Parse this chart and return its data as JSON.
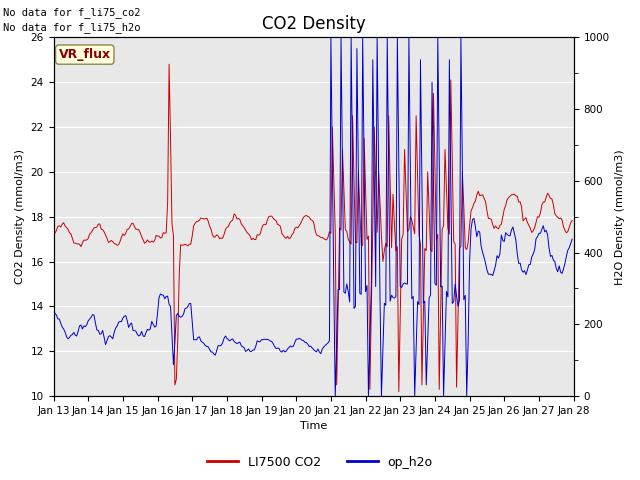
{
  "title": "CO2 Density",
  "xlabel": "Time",
  "ylabel_left": "CO2 Density (mmol/m3)",
  "ylabel_right": "H2O Density (mmol/m3)",
  "annotation_line1": "No data for f_li75_co2",
  "annotation_line2": "No data for f_li75_h2o",
  "vr_flux_label": "VR_flux",
  "legend_co2": "LI7500 CO2",
  "legend_h2o": "op_h2o",
  "co2_color": "#cc0000",
  "h2o_color": "#0000cc",
  "background_color": "#e8e8e8",
  "ylim_left": [
    10,
    26
  ],
  "ylim_right": [
    0,
    1000
  ],
  "yticks_left": [
    10,
    12,
    14,
    16,
    18,
    20,
    22,
    24,
    26
  ],
  "yticks_right": [
    0,
    200,
    400,
    600,
    800,
    1000
  ],
  "title_fontsize": 12,
  "label_fontsize": 8,
  "tick_fontsize": 7.5,
  "annot_fontsize": 7.5,
  "legend_fontsize": 9
}
